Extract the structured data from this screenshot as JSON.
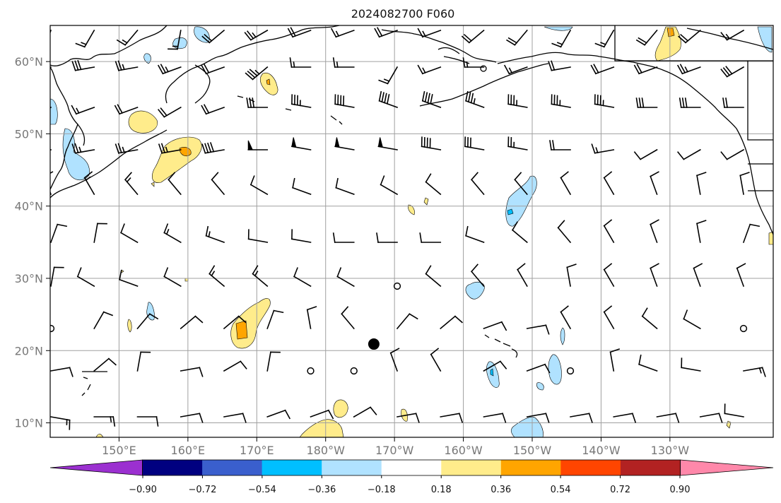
{
  "title": "2024082700 F060",
  "map": {
    "projection": "PlateCarree (central_longitude=180)",
    "lon_range": [
      "140°E",
      "115°W"
    ],
    "lat_range": [
      "8°N",
      "65°N"
    ],
    "y_ticks": [
      "60°N",
      "50°N",
      "40°N",
      "30°N",
      "20°N",
      "10°N"
    ],
    "x_ticks": [
      "150°E",
      "160°E",
      "170°E",
      "180°W",
      "170°W",
      "160°W",
      "150°W",
      "140°W",
      "130°W"
    ],
    "gridlines": true,
    "marker": {
      "name": "point",
      "lon": -173,
      "lat": 20.9,
      "color": "#000000"
    }
  },
  "colorbar": {
    "ticks": [
      "−0.90",
      "−0.72",
      "−0.54",
      "−0.36",
      "−0.18",
      "0.18",
      "0.36",
      "0.54",
      "0.72",
      "0.90"
    ],
    "colors": [
      "#9b30d0",
      "#000080",
      "#3a5fcd",
      "#00bfff",
      "#b0e2ff",
      "#ffffff",
      "#ffec8b",
      "#ffa500",
      "#ff4500",
      "#b22222",
      "#ff88aa"
    ],
    "extend": "both"
  },
  "contour_colors": {
    "light_blue": "#b0e2ff",
    "blue": "#00bfff",
    "light_yellow": "#ffec8b",
    "orange": "#ffa500"
  }
}
